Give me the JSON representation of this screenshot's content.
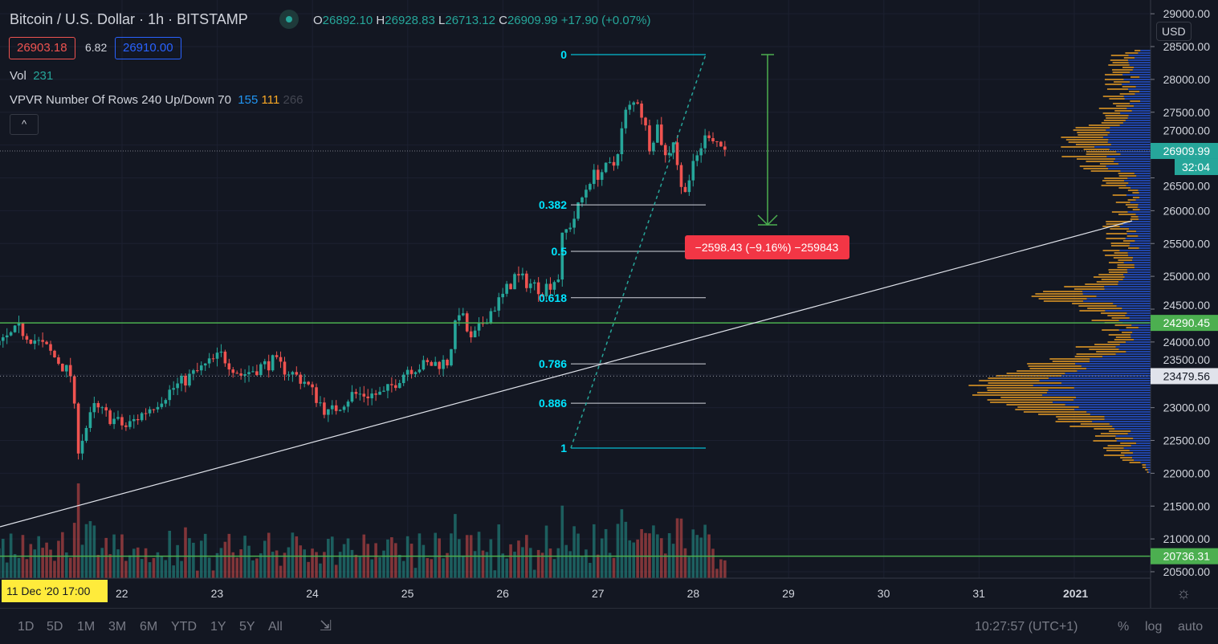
{
  "header": {
    "symbol": "Bitcoin / U.S. Dollar",
    "interval": "1h",
    "exchange": "BITSTAMP",
    "ohlc": {
      "o_label": "O",
      "o": "26892.10",
      "h_label": "H",
      "h": "26928.83",
      "l_label": "L",
      "l": "26713.12",
      "c_label": "C",
      "c": "26909.99",
      "change": "+17.90 (+0.07%)"
    },
    "bid": "26903.18",
    "spread": "6.82",
    "ask": "26910.00"
  },
  "indicators": {
    "vol_label": "Vol",
    "vol_value": "231",
    "vpvr_label": "VPVR Number Of Rows 240 Up/Down 70",
    "vpvr_up": "155",
    "vpvr_down": "111",
    "vpvr_total": "266",
    "collapse": "^"
  },
  "price_axis": {
    "currency": "USD",
    "ticks": [
      "29000.00",
      "28500.00",
      "28000.00",
      "27500.00",
      "27000.00",
      "26500.00",
      "26000.00",
      "25500.00",
      "25000.00",
      "24500.00",
      "24000.00",
      "23500.00",
      "23000.00",
      "22500.00",
      "22000.00",
      "21500.00",
      "21000.00",
      "20500.00"
    ],
    "last_price": "26909.99",
    "countdown": "32:04",
    "line1": "24290.45",
    "line2": "20736.31",
    "crosshair_price": "23479.56"
  },
  "time_axis": {
    "ticks": [
      "22",
      "23",
      "24",
      "25",
      "26",
      "27",
      "28",
      "29",
      "30",
      "31",
      "2021"
    ],
    "crosshair_time": "11 Dec '20  17:00"
  },
  "fib": {
    "levels": [
      "0",
      "0.382",
      "0.5",
      "0.618",
      "0.786",
      "0.886",
      "1"
    ],
    "high": 28378,
    "low": 22384
  },
  "measure_label": "−2598.43 (−9.16%) −259843",
  "colors": {
    "up": "#26a69a",
    "down": "#ef5350",
    "fib": "#00e5ff",
    "hline": "#4caf50",
    "vpvr_up": "#2962ff",
    "vpvr_down": "#f9a825"
  },
  "chart_data": {
    "type": "candlestick",
    "interval": "1h",
    "approx_close_keypoints": [
      [
        "2020-12-20 17:00",
        23950
      ],
      [
        "2020-12-20 22:00",
        24200
      ],
      [
        "2020-12-21 05:00",
        23900
      ],
      [
        "2020-12-21 11:00",
        23500
      ],
      [
        "2020-12-21 13:00",
        22400
      ],
      [
        "2020-12-21 17:00",
        23000
      ],
      [
        "2020-12-22 01:00",
        22700
      ],
      [
        "2020-12-22 13:00",
        23300
      ],
      [
        "2020-12-23 01:00",
        23800
      ],
      [
        "2020-12-23 06:00",
        23500
      ],
      [
        "2020-12-23 14:00",
        23700
      ],
      [
        "2020-12-23 22:00",
        23400
      ],
      [
        "2020-12-24 04:00",
        22900
      ],
      [
        "2020-12-24 10:00",
        23200
      ],
      [
        "2020-12-24 18:00",
        23200
      ],
      [
        "2020-12-25 00:00",
        23600
      ],
      [
        "2020-12-25 10:00",
        23700
      ],
      [
        "2020-12-25 13:00",
        24500
      ],
      [
        "2020-12-25 16:00",
        24000
      ],
      [
        "2020-12-25 20:00",
        24400
      ],
      [
        "2020-12-26 00:00",
        24700
      ],
      [
        "2020-12-26 03:00",
        25000
      ],
      [
        "2020-12-26 10:00",
        24800
      ],
      [
        "2020-12-26 14:00",
        25000
      ],
      [
        "2020-12-26 15:00",
        25600
      ],
      [
        "2020-12-26 18:00",
        25900
      ],
      [
        "2020-12-26 22:00",
        26500
      ],
      [
        "2020-12-27 04:00",
        26700
      ],
      [
        "2020-12-27 07:00",
        27500
      ],
      [
        "2020-12-27 10:00",
        27700
      ],
      [
        "2020-12-27 13:00",
        27000
      ],
      [
        "2020-12-27 15:00",
        27300
      ],
      [
        "2020-12-27 17:00",
        26800
      ],
      [
        "2020-12-27 19:00",
        27100
      ],
      [
        "2020-12-27 21:00",
        26300
      ],
      [
        "2020-12-27 23:00",
        26500
      ],
      [
        "2020-12-28 02:00",
        27000
      ],
      [
        "2020-12-28 04:00",
        27200
      ],
      [
        "2020-12-28 08:00",
        26909.99
      ]
    ],
    "ylim": [
      20400,
      29100
    ]
  },
  "bottom": {
    "ranges": [
      "1D",
      "5D",
      "1M",
      "3M",
      "6M",
      "YTD",
      "1Y",
      "5Y",
      "All"
    ],
    "clock": "10:27:57 (UTC+1)",
    "pct": "%",
    "log": "log",
    "auto": "auto"
  }
}
